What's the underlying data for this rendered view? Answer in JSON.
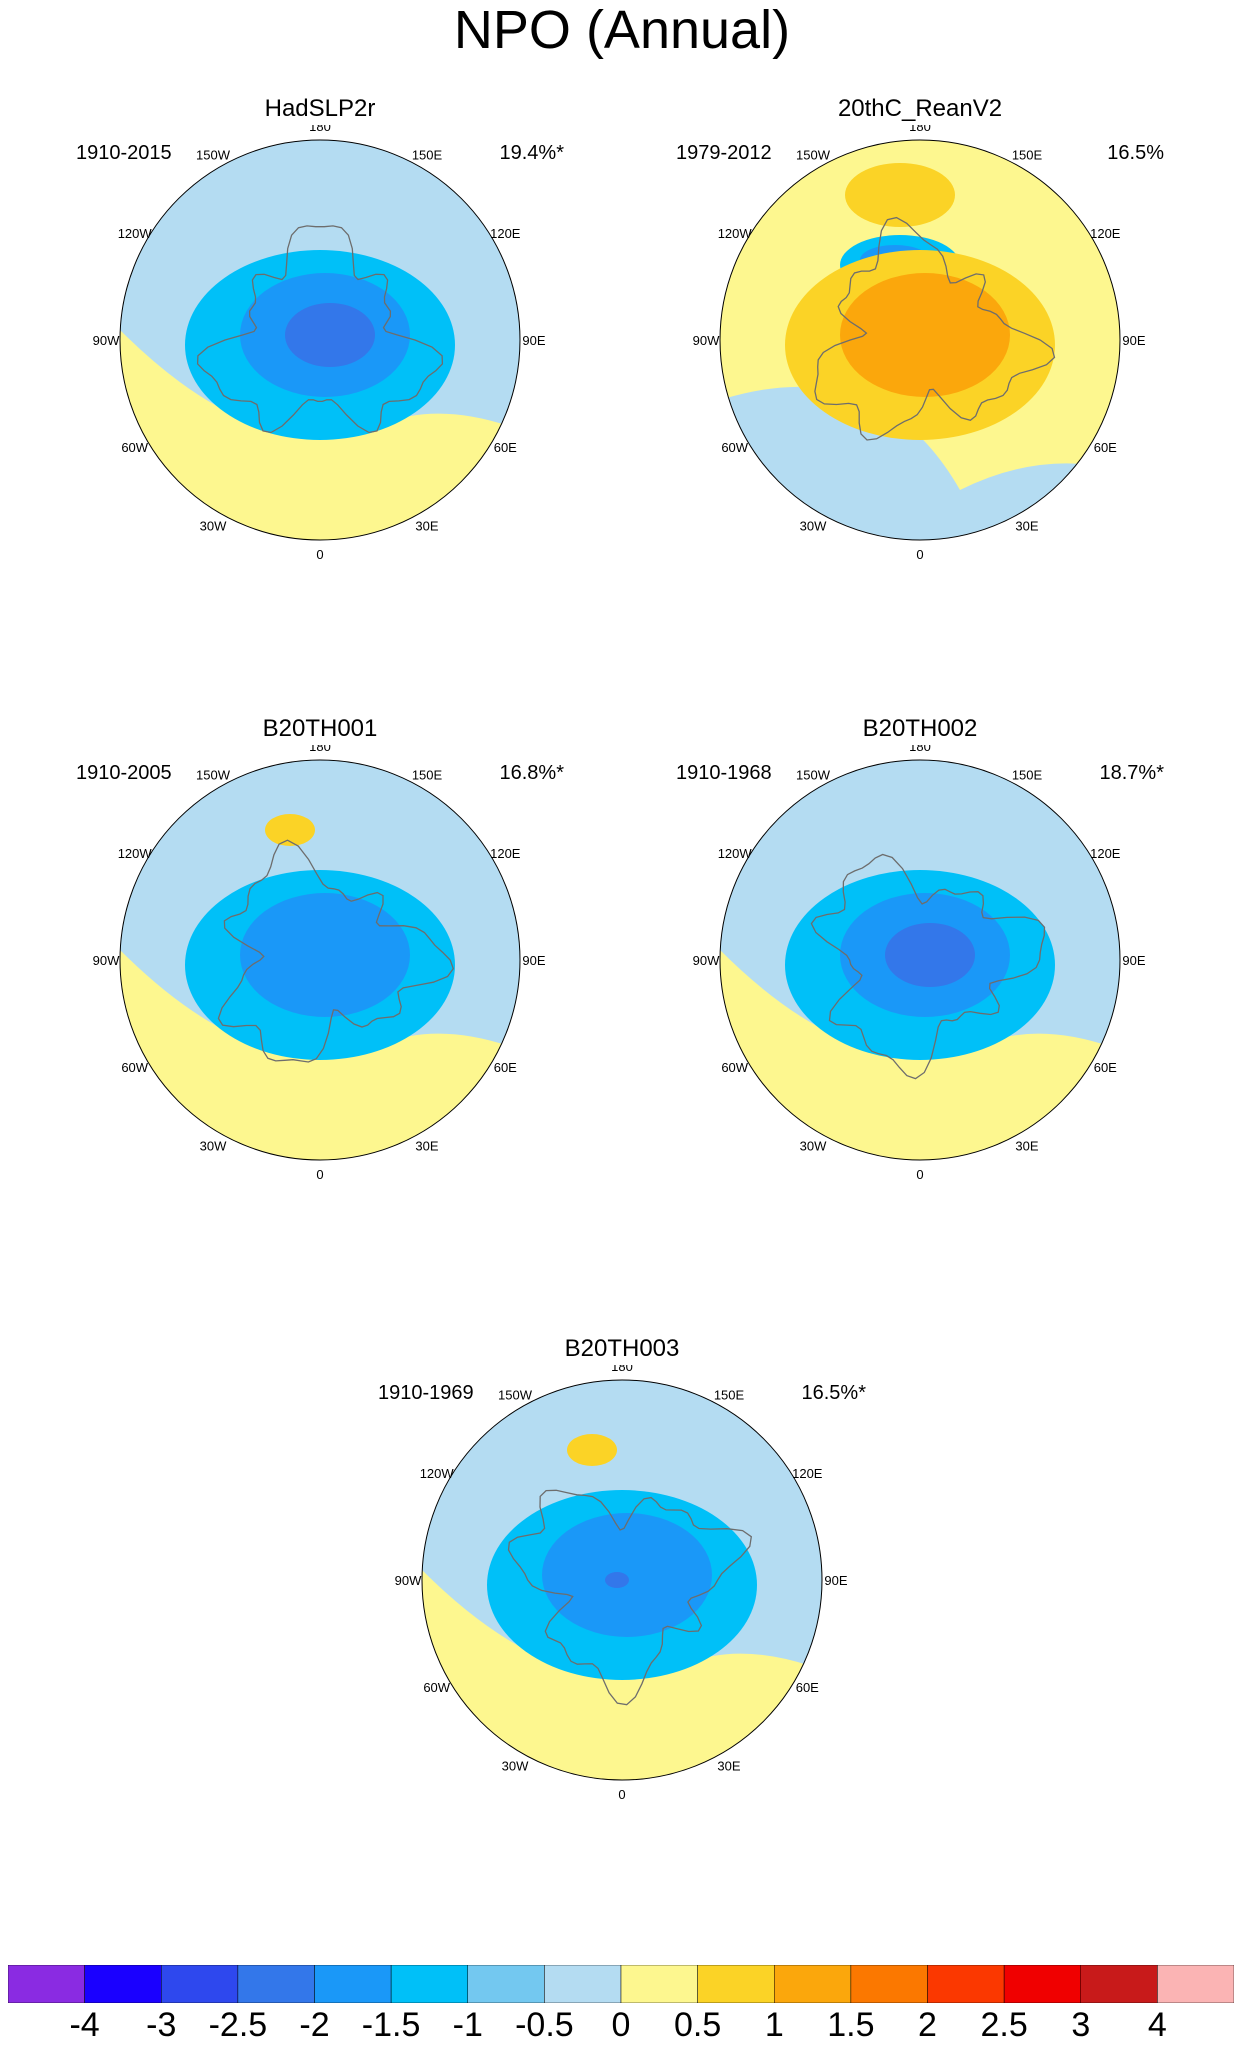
{
  "title": "NPO (Annual)",
  "panels": [
    {
      "id": "hadslp2r",
      "title": "HadSLP2r",
      "period": "1910-2015",
      "explained_variance": "19.4%*",
      "pattern": [
        {
          "level": "-1",
          "center": "arctic",
          "scale": "large"
        },
        {
          "level": "-1.5",
          "center": "arctic",
          "scale": "medium"
        },
        {
          "level": "-2",
          "center": "arctic",
          "scale": "small"
        }
      ]
    },
    {
      "id": "20thc-reanv2",
      "title": "20thC_ReanV2",
      "period": "1979-2012",
      "explained_variance": "16.5%",
      "pattern": [
        {
          "level": "1",
          "center": "north-pacific",
          "scale": "medium"
        },
        {
          "level": "-1",
          "center": "east-siberian-sea",
          "scale": "medium"
        },
        {
          "level": "-1.5",
          "center": "east-siberian-sea",
          "scale": "small"
        },
        {
          "level": "1",
          "center": "arctic",
          "scale": "large"
        },
        {
          "level": "1.5",
          "center": "arctic",
          "scale": "medium"
        }
      ]
    },
    {
      "id": "b20th001",
      "title": "B20TH001",
      "period": "1910-2005",
      "explained_variance": "16.8%*",
      "pattern": [
        {
          "level": "1",
          "center": "north-pacific",
          "scale": "small"
        },
        {
          "level": "-1",
          "center": "arctic",
          "scale": "large"
        },
        {
          "level": "-1.5",
          "center": "arctic",
          "scale": "medium"
        }
      ]
    },
    {
      "id": "b20th002",
      "title": "B20TH002",
      "period": "1910-1968",
      "explained_variance": "18.7%*",
      "pattern": [
        {
          "level": "-1",
          "center": "arctic",
          "scale": "large"
        },
        {
          "level": "-1.5",
          "center": "arctic",
          "scale": "medium"
        },
        {
          "level": "-2",
          "center": "arctic",
          "scale": "small"
        }
      ]
    },
    {
      "id": "b20th003",
      "title": "B20TH003",
      "period": "1910-1969",
      "explained_variance": "16.5%*",
      "pattern": [
        {
          "level": "1",
          "center": "north-pacific",
          "scale": "small"
        },
        {
          "level": "-1",
          "center": "arctic",
          "scale": "large"
        },
        {
          "level": "-1.5",
          "center": "arctic",
          "scale": "medium"
        },
        {
          "level": "-2",
          "center": "arctic",
          "scale": "tiny"
        }
      ]
    }
  ],
  "lon_labels": [
    "180",
    "150E",
    "120E",
    "90E",
    "60E",
    "30E",
    "0",
    "30W",
    "60W",
    "90W",
    "120W",
    "150W"
  ],
  "chart_data": {
    "type": "heatmap",
    "title": "NPO (Annual)",
    "projection": "north-polar-stereographic",
    "colorbar": {
      "labels": [
        "-4",
        "-3",
        "-2.5",
        "-2",
        "-1.5",
        "-1",
        "-0.5",
        "0",
        "0.5",
        "1",
        "1.5",
        "2",
        "2.5",
        "3",
        "4"
      ],
      "bins": [
        {
          "level": "< -4",
          "color": "#8a2be2"
        },
        {
          "level": "-4 to -3",
          "color": "#1a00ff"
        },
        {
          "level": "-3 to -2.5",
          "color": "#2e48ee"
        },
        {
          "level": "-2.5 to -2",
          "color": "#3377ea"
        },
        {
          "level": "-2 to -1.5",
          "color": "#1a98f8"
        },
        {
          "level": "-1.5 to -1",
          "color": "#00c0f8"
        },
        {
          "level": "-1 to -0.5",
          "color": "#73c8f0"
        },
        {
          "level": "-0.5 to 0",
          "color": "#b4dcf2"
        },
        {
          "level": "0 to 0.5",
          "color": "#fdf78f"
        },
        {
          "level": "0.5 to 1",
          "color": "#fbd326"
        },
        {
          "level": "1 to 1.5",
          "color": "#fba70c"
        },
        {
          "level": "1.5 to 2",
          "color": "#fb7800"
        },
        {
          "level": "2 to 2.5",
          "color": "#fb3800"
        },
        {
          "level": "2.5 to 3",
          "color": "#f00000"
        },
        {
          "level": "3 to 4",
          "color": "#c81a1a"
        },
        {
          "level": "> 4",
          "color": "#fbb4b4"
        }
      ]
    }
  }
}
